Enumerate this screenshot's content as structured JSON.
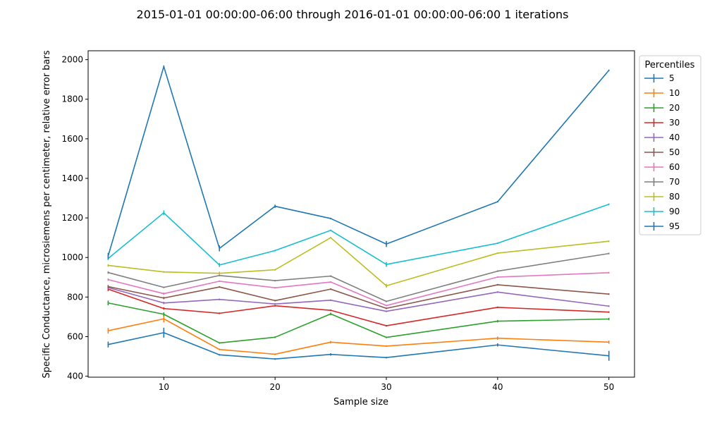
{
  "chart_data": {
    "type": "line",
    "title": "2015-01-01 00:00:00-06:00 through 2016-01-01 00:00:00-06:00 1 iterations",
    "xlabel": "Sample size",
    "ylabel": "Specific Conductance, microsiemens per centimeter, relative error bars",
    "xlim": [
      3.2,
      52.3
    ],
    "ylim": [
      395,
      2045
    ],
    "x_ticks": [
      10,
      20,
      30,
      40,
      50
    ],
    "y_ticks": [
      400,
      600,
      800,
      1000,
      1200,
      1400,
      1600,
      1800,
      2000
    ],
    "grid": false,
    "legend": {
      "title": "Percentiles",
      "placement": "outside-right-top"
    },
    "x": [
      5,
      10,
      15,
      20,
      25,
      30,
      40,
      50
    ],
    "series": [
      {
        "name": "5",
        "color": "#1f77b4",
        "values": [
          560,
          620,
          508,
          487,
          510,
          494,
          558,
          503
        ],
        "errors": [
          15,
          25,
          4,
          4,
          6,
          4,
          8,
          25
        ]
      },
      {
        "name": "10",
        "color": "#ff7f0e",
        "values": [
          630,
          690,
          535,
          511,
          572,
          552,
          592,
          572
        ],
        "errors": [
          14,
          18,
          4,
          4,
          6,
          4,
          8,
          8
        ]
      },
      {
        "name": "20",
        "color": "#2ca02c",
        "values": [
          770,
          713,
          568,
          597,
          715,
          596,
          678,
          689
        ],
        "errors": [
          12,
          10,
          4,
          4,
          6,
          4,
          6,
          6
        ]
      },
      {
        "name": "30",
        "color": "#d62728",
        "values": [
          840,
          742,
          718,
          756,
          733,
          655,
          748,
          724
        ],
        "errors": [
          10,
          6,
          4,
          4,
          4,
          4,
          4,
          4
        ]
      },
      {
        "name": "40",
        "color": "#9467bd",
        "values": [
          848,
          770,
          788,
          765,
          784,
          728,
          825,
          754
        ],
        "errors": [
          8,
          6,
          4,
          4,
          4,
          4,
          4,
          4
        ]
      },
      {
        "name": "50",
        "color": "#8c564b",
        "values": [
          853,
          795,
          851,
          782,
          840,
          743,
          862,
          815
        ],
        "errors": [
          8,
          6,
          4,
          4,
          4,
          4,
          4,
          4
        ]
      },
      {
        "name": "60",
        "color": "#e377c2",
        "values": [
          888,
          817,
          880,
          847,
          876,
          757,
          901,
          923
        ],
        "errors": [
          6,
          6,
          4,
          4,
          4,
          4,
          4,
          4
        ]
      },
      {
        "name": "70",
        "color": "#7f7f7f",
        "values": [
          924,
          849,
          909,
          883,
          906,
          778,
          931,
          1020
        ],
        "errors": [
          6,
          4,
          4,
          4,
          4,
          4,
          4,
          4
        ]
      },
      {
        "name": "80",
        "color": "#bcbd22",
        "values": [
          960,
          927,
          920,
          938,
          1100,
          857,
          1022,
          1082
        ],
        "errors": [
          6,
          4,
          8,
          4,
          4,
          10,
          4,
          4
        ]
      },
      {
        "name": "90",
        "color": "#17becf",
        "values": [
          995,
          1226,
          962,
          1035,
          1137,
          965,
          1072,
          1269
        ],
        "errors": [
          8,
          12,
          10,
          4,
          4,
          12,
          4,
          4
        ]
      },
      {
        "name": "95",
        "color": "#1f77b4",
        "values": [
          1008,
          1965,
          1046,
          1259,
          1197,
          1068,
          1282,
          1946
        ],
        "errors": [
          15,
          6,
          15,
          8,
          4,
          15,
          4,
          4
        ]
      }
    ]
  }
}
